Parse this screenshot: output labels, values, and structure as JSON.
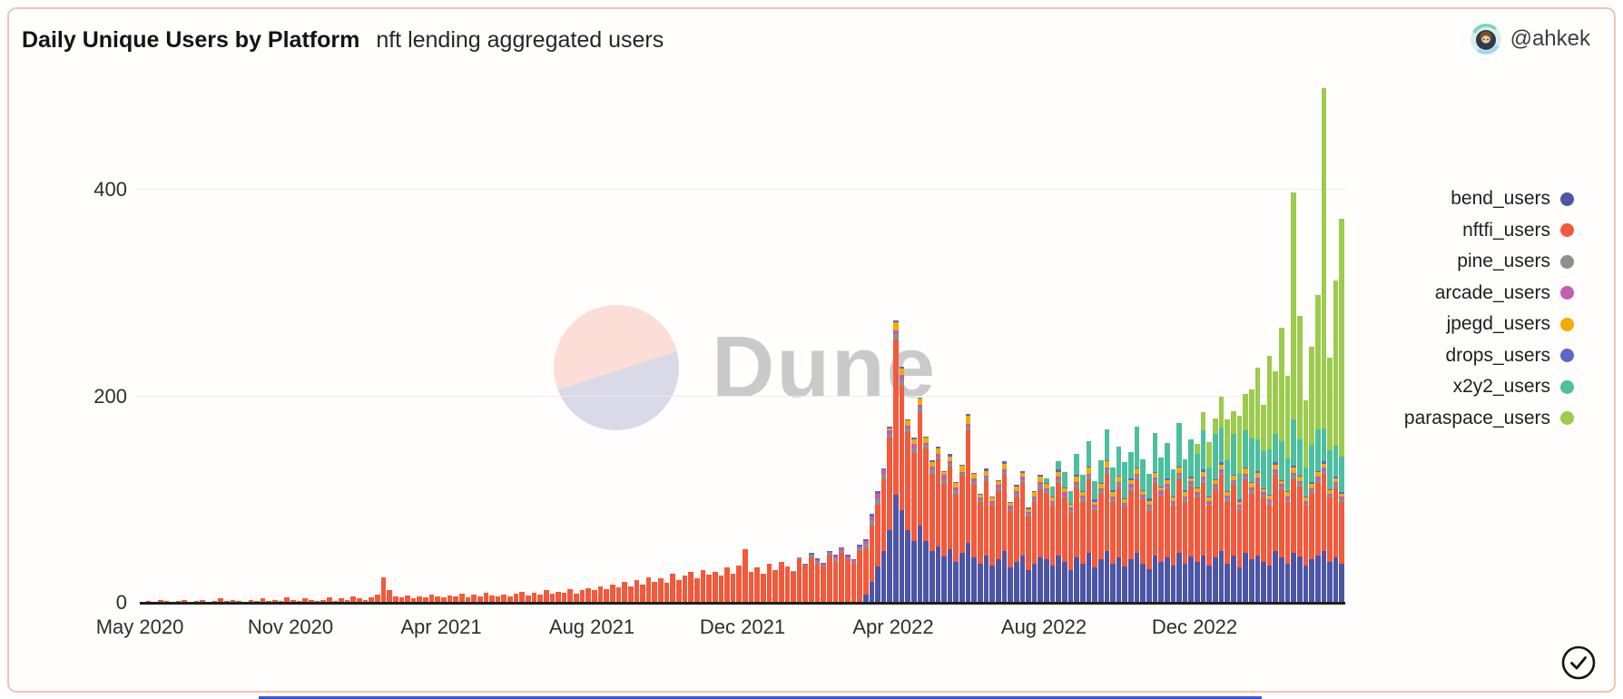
{
  "header": {
    "title": "Daily Unique Users by Platform",
    "subtitle": "nft lending aggregated users",
    "author": "@ahkek"
  },
  "watermark": {
    "text": "Dune"
  },
  "axes": {
    "ymax": 505,
    "y_ticks": [
      {
        "label": "0",
        "value": 0
      },
      {
        "label": "200",
        "value": 200
      },
      {
        "label": "400",
        "value": 400
      }
    ],
    "y_gridlines": [
      200,
      400
    ],
    "x_ticks": [
      "May 2020",
      "Nov 2020",
      "Apr 2021",
      "Aug 2021",
      "Dec 2021",
      "Apr 2022",
      "Aug 2022",
      "Dec 2022"
    ]
  },
  "footer": {
    "icon": "check-circle"
  },
  "chart_data": {
    "type": "bar",
    "stacked": true,
    "title": "Daily Unique Users by Platform",
    "subtitle": "nft lending aggregated users",
    "xlabel": "",
    "ylabel": "",
    "ylim": [
      0,
      500
    ],
    "grid": "horizontal",
    "legend_position": "right",
    "x_range": [
      "May 2020",
      "Mar 2023"
    ],
    "points": 200,
    "note": "values are daily unique users downsampled to 200 buckets; series stack bottom-to-top in listed order; 'start' is the first bucket index with nonzero data",
    "series": [
      {
        "name": "bend_users",
        "color": "#4c55a6",
        "start": 120,
        "values": [
          8,
          20,
          35,
          50,
          70,
          105,
          90,
          70,
          60,
          75,
          60,
          50,
          55,
          45,
          52,
          40,
          48,
          58,
          44,
          38,
          46,
          36,
          42,
          50,
          34,
          40,
          46,
          32,
          38,
          44,
          42,
          36,
          46,
          40,
          32,
          44,
          38,
          48,
          34,
          42,
          50,
          38,
          44,
          35,
          42,
          48,
          38,
          33,
          46,
          40,
          44,
          36,
          48,
          38,
          45,
          40,
          46,
          36,
          44,
          50,
          38,
          46,
          34,
          48,
          42,
          46,
          40,
          36,
          50,
          44,
          38,
          48,
          45,
          36,
          42,
          46,
          50,
          40,
          44,
          38
        ]
      },
      {
        "name": "nftfi_users",
        "color": "#f4593b",
        "start": 0,
        "values": [
          1,
          2,
          1,
          3,
          2,
          1,
          2,
          3,
          1,
          2,
          3,
          1,
          2,
          4,
          2,
          3,
          2,
          1,
          3,
          2,
          4,
          2,
          3,
          2,
          5,
          3,
          2,
          4,
          3,
          2,
          3,
          5,
          2,
          4,
          3,
          6,
          4,
          3,
          5,
          8,
          25,
          12,
          6,
          5,
          7,
          4,
          6,
          5,
          8,
          6,
          5,
          7,
          6,
          9,
          5,
          8,
          6,
          10,
          7,
          6,
          8,
          6,
          9,
          11,
          7,
          10,
          8,
          12,
          9,
          11,
          10,
          13,
          9,
          12,
          14,
          12,
          16,
          13,
          18,
          15,
          20,
          16,
          22,
          18,
          25,
          20,
          24,
          19,
          28,
          22,
          26,
          30,
          24,
          32,
          27,
          30,
          26,
          34,
          28,
          36,
          52,
          30,
          34,
          28,
          38,
          32,
          40,
          35,
          30,
          42,
          36,
          44,
          38,
          35,
          46,
          40,
          48,
          42,
          38,
          50,
          45,
          55,
          60,
          70,
          90,
          150,
          120,
          95,
          85,
          110,
          90,
          75,
          85,
          70,
          80,
          65,
          75,
          110,
          70,
          60,
          72,
          58,
          66,
          74,
          55,
          62,
          70,
          52,
          60,
          66,
          64,
          58,
          70,
          62,
          55,
          68,
          60,
          72,
          56,
          64,
          75,
          60,
          68,
          58,
          66,
          72,
          62,
          56,
          70,
          64,
          66,
          58,
          72,
          60,
          68,
          62,
          70,
          58,
          66,
          74,
          60,
          68,
          56,
          72,
          64,
          70,
          62,
          58,
          74,
          66,
          60,
          72,
          68,
          58,
          64,
          70,
          75,
          62,
          68,
          60
        ]
      },
      {
        "name": "pine_users",
        "color": "#8e8e8e",
        "start": 108,
        "values": [
          1,
          2,
          1,
          3,
          2,
          1,
          2,
          3,
          2,
          1,
          2,
          3,
          4,
          5,
          6,
          5,
          4,
          5,
          6,
          4,
          5,
          4,
          3,
          4,
          2,
          5,
          3,
          4,
          2,
          3,
          4,
          2,
          3,
          2,
          4,
          3,
          2,
          4,
          3,
          2,
          3,
          4,
          2,
          3,
          4,
          2,
          3,
          2,
          4,
          3,
          2,
          3,
          4,
          2,
          3,
          2,
          4,
          3,
          2,
          4,
          3,
          2,
          3,
          2,
          4,
          3,
          2,
          3,
          4,
          2,
          3,
          2,
          4,
          3,
          2,
          3,
          4,
          2,
          3,
          4,
          2,
          3,
          2,
          4,
          3,
          2,
          3,
          4,
          3,
          2,
          3,
          2
        ]
      },
      {
        "name": "arcade_users",
        "color": "#c45cb0",
        "start": 112,
        "values": [
          1,
          2,
          1,
          2,
          3,
          2,
          1,
          2,
          3,
          4,
          5,
          4,
          3,
          4,
          5,
          3,
          4,
          3,
          2,
          3,
          2,
          4,
          2,
          3,
          2,
          2,
          3,
          2,
          2,
          3,
          2,
          2,
          3,
          2,
          3,
          2,
          2,
          3,
          3,
          2,
          2,
          3,
          2,
          3,
          2,
          2,
          3,
          2,
          2,
          3,
          2,
          2,
          3,
          2,
          3,
          2,
          2,
          3,
          2,
          3,
          2,
          2,
          3,
          2,
          2,
          3,
          2,
          3,
          2,
          2,
          3,
          2,
          2,
          3,
          2,
          2,
          3,
          2,
          3,
          2,
          2,
          3,
          2,
          2,
          3,
          2,
          2,
          3
        ]
      },
      {
        "name": "jpegd_users",
        "color": "#f0ac00",
        "start": 124,
        "values": [
          2,
          8,
          6,
          5,
          4,
          6,
          5,
          4,
          6,
          3,
          5,
          4,
          6,
          8,
          4,
          3,
          5,
          3,
          4,
          6,
          3,
          5,
          4,
          3,
          4,
          5,
          4,
          3,
          5,
          4,
          3,
          5,
          3,
          6,
          3,
          4,
          6,
          4,
          5,
          3,
          4,
          5,
          3,
          4,
          5,
          3,
          4,
          3,
          5,
          4,
          3,
          4,
          5,
          3,
          4,
          5,
          3,
          4,
          3,
          5,
          4,
          5,
          3,
          4,
          5,
          3,
          4,
          5,
          4,
          3,
          4,
          5,
          4,
          3,
          4,
          3
        ]
      },
      {
        "name": "drops_users",
        "color": "#5c68c6",
        "start": 110,
        "values": [
          1,
          1,
          2,
          1,
          1,
          2,
          1,
          2,
          1,
          1,
          2,
          2,
          2,
          1,
          2,
          2,
          2,
          1,
          2,
          1,
          1,
          2,
          1,
          1,
          2,
          1,
          1,
          2,
          1,
          1,
          2,
          1,
          1,
          2,
          1,
          1,
          2,
          1,
          1,
          2,
          1,
          1,
          2,
          1,
          1,
          2,
          1,
          1,
          2,
          1,
          1,
          2,
          1,
          1,
          2,
          1,
          1,
          2,
          1,
          1,
          2,
          1,
          1,
          2,
          1,
          1,
          2,
          1,
          1,
          2,
          1,
          1,
          2,
          1,
          1,
          2,
          1,
          1,
          2,
          1,
          1,
          2,
          1,
          1,
          2,
          1,
          2,
          1,
          1,
          1
        ]
      },
      {
        "name": "x2y2_users",
        "color": "#4cbf9f",
        "start": 150,
        "values": [
          5,
          10,
          8,
          15,
          12,
          20,
          16,
          25,
          18,
          22,
          30,
          22,
          28,
          35,
          25,
          40,
          30,
          24,
          38,
          28,
          34,
          26,
          42,
          30,
          36,
          32,
          38,
          28,
          44,
          34,
          30,
          40,
          26,
          36,
          42,
          30,
          36,
          44,
          28,
          38,
          32,
          45,
          35,
          28,
          36,
          40,
          32,
          38,
          30,
          35
        ]
      },
      {
        "name": "paraspace_users",
        "color": "#9ccb4d",
        "start": 175,
        "values": [
          10,
          18,
          25,
          15,
          30,
          40,
          22,
          55,
          35,
          48,
          70,
          45,
          90,
          60,
          110,
          80,
          220,
          120,
          65,
          95,
          130,
          330,
          90,
          160,
          230
        ]
      }
    ]
  }
}
